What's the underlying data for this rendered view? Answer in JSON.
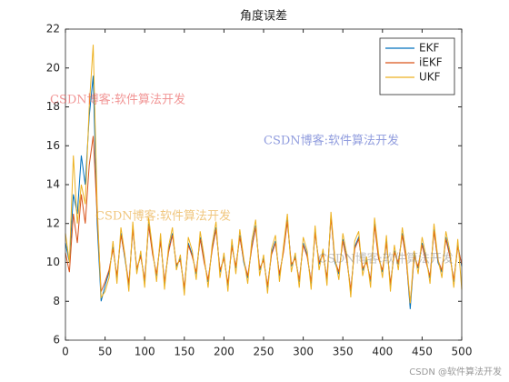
{
  "chart_data": {
    "type": "line",
    "title": "角度误差",
    "x": [
      0,
      5,
      10,
      15,
      20,
      25,
      30,
      35,
      40,
      45,
      50,
      55,
      60,
      65,
      70,
      75,
      80,
      85,
      90,
      95,
      100,
      105,
      110,
      115,
      120,
      125,
      130,
      135,
      140,
      145,
      150,
      155,
      160,
      165,
      170,
      175,
      180,
      185,
      190,
      195,
      200,
      205,
      210,
      215,
      220,
      225,
      230,
      235,
      240,
      245,
      250,
      255,
      260,
      265,
      270,
      275,
      280,
      285,
      290,
      295,
      300,
      305,
      310,
      315,
      320,
      325,
      330,
      335,
      340,
      345,
      350,
      355,
      360,
      365,
      370,
      375,
      380,
      385,
      390,
      395,
      400,
      405,
      410,
      415,
      420,
      425,
      430,
      435,
      440,
      445,
      450,
      455,
      460,
      465,
      470,
      475,
      480,
      485,
      490,
      495,
      500
    ],
    "series": [
      {
        "name": "EKF",
        "color": "#0072BD",
        "values": [
          11,
          10,
          13.5,
          12.5,
          15.5,
          14,
          17.5,
          19.6,
          12,
          8,
          8.8,
          9.5,
          10.8,
          9.2,
          11.5,
          10.2,
          8.8,
          11.8,
          9.6,
          10.4,
          9.0,
          12,
          10.5,
          9.3,
          11.2,
          8.9,
          10.6,
          11.5,
          9.8,
          10.2,
          8.6,
          11.0,
          10.4,
          9.4,
          11.3,
          10.1,
          9.0,
          10.7,
          11.8,
          9.5,
          10.3,
          8.8,
          10.9,
          9.7,
          11.4,
          10.0,
          9.2,
          10.8,
          11.9,
          9.6,
          10.2,
          8.7,
          10.5,
          11.1,
          9.3,
          10.6,
          12.2,
          9.8,
          10.3,
          9.0,
          11.0,
          10.4,
          8.9,
          11.6,
          9.9,
          10.5,
          9.1,
          12.4,
          10.0,
          9.4,
          11.2,
          10.2,
          8.5,
          10.8,
          11.3,
          9.6,
          10.1,
          9.0,
          12.0,
          10.3,
          9.5,
          11.1,
          8.8,
          10.6,
          9.9,
          11.5,
          10.2,
          7.6,
          10.4,
          9.7,
          11.0,
          10.1,
          9.2,
          11.7,
          10.0,
          9.5,
          11.3,
          10.4,
          9.0,
          10.9,
          9.8
        ]
      },
      {
        "name": "iEKF",
        "color": "#D95319",
        "values": [
          10.5,
          9.5,
          12.5,
          11,
          13.5,
          12,
          15,
          16.5,
          12.5,
          8.5,
          9.0,
          9.6,
          10.7,
          9.3,
          11.4,
          10.3,
          8.9,
          11.7,
          9.7,
          10.3,
          9.1,
          11.9,
          10.4,
          9.4,
          11.1,
          9.0,
          10.5,
          11.4,
          9.9,
          10.1,
          8.7,
          10.9,
          10.3,
          9.5,
          11.2,
          10.0,
          9.1,
          10.6,
          11.7,
          9.6,
          10.2,
          8.9,
          10.8,
          9.8,
          11.3,
          10.1,
          9.3,
          10.7,
          11.8,
          9.7,
          10.1,
          8.8,
          10.4,
          11.0,
          9.4,
          10.5,
          12.1,
          9.9,
          10.2,
          9.1,
          10.9,
          10.3,
          9.0,
          11.5,
          10.0,
          10.4,
          9.2,
          12.3,
          10.1,
          9.5,
          11.1,
          10.1,
          8.6,
          10.7,
          11.2,
          9.7,
          10.0,
          9.1,
          11.9,
          10.2,
          9.6,
          11.0,
          8.9,
          10.5,
          10.0,
          11.4,
          10.1,
          7.9,
          10.3,
          9.8,
          10.9,
          10.0,
          9.3,
          11.6,
          10.1,
          9.6,
          11.2,
          10.3,
          9.1,
          10.8,
          9.9
        ]
      },
      {
        "name": "UKF",
        "color": "#EDB120",
        "values": [
          11.5,
          10,
          15.5,
          12,
          14,
          13,
          18,
          21.2,
          13,
          8.2,
          8.5,
          9.2,
          11.1,
          8.9,
          11.8,
          10.4,
          8.5,
          12.1,
          9.4,
          10.6,
          8.7,
          12.3,
          10.7,
          9.0,
          11.5,
          8.6,
          10.8,
          11.8,
          9.6,
          10.4,
          8.3,
          11.3,
          10.6,
          9.1,
          11.6,
          10.3,
          8.7,
          10.9,
          12.1,
          9.2,
          10.5,
          8.5,
          11.2,
          9.4,
          11.7,
          10.2,
          8.9,
          11.1,
          12.2,
          9.3,
          10.4,
          8.4,
          10.7,
          11.4,
          9.0,
          10.8,
          12.5,
          9.5,
          10.5,
          8.7,
          11.3,
          10.6,
          8.6,
          11.9,
          9.6,
          10.7,
          8.8,
          12.6,
          10.2,
          9.1,
          11.5,
          10.4,
          8.2,
          11.1,
          11.6,
          9.3,
          10.3,
          8.7,
          12.3,
          10.5,
          9.2,
          11.4,
          8.5,
          10.9,
          9.6,
          11.8,
          10.4,
          7.9,
          10.6,
          9.4,
          11.3,
          10.3,
          8.9,
          12.0,
          10.2,
          9.2,
          11.6,
          10.6,
          8.7,
          11.2,
          8.6
        ]
      }
    ],
    "xlim": [
      0,
      500
    ],
    "xticks": [
      0,
      50,
      100,
      150,
      200,
      250,
      300,
      350,
      400,
      450,
      500
    ],
    "ylim": [
      6,
      22
    ],
    "yticks": [
      6,
      8,
      10,
      12,
      14,
      16,
      18,
      20,
      22
    ],
    "legend": "upper right",
    "watermarks": [
      "CSDN博客:软件算法开发",
      "CSDN博客:软件算法开发",
      "CSDN博客:软件算法开发",
      "CSDN博客:软件算法开发"
    ],
    "credit": "CSDN @软件算法开发"
  }
}
